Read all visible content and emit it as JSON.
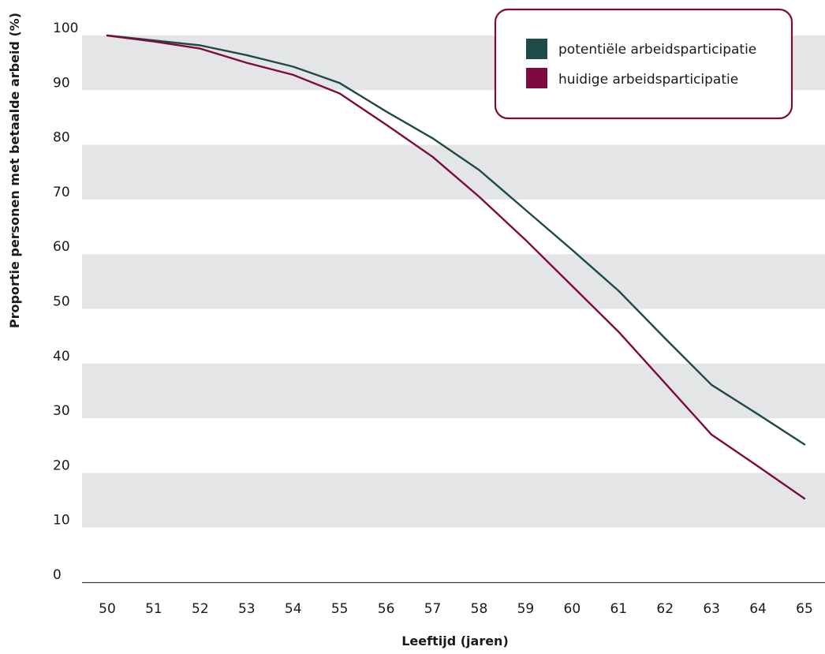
{
  "chart_data": {
    "type": "line",
    "xlabel": "Leeftijd (jaren)",
    "ylabel": "Proportie personen met betaalde arbeid (%)",
    "ylim": [
      0,
      100
    ],
    "yticks": [
      0,
      10,
      20,
      30,
      40,
      50,
      60,
      70,
      80,
      90,
      100
    ],
    "x": [
      50,
      51,
      52,
      53,
      54,
      55,
      56,
      57,
      58,
      59,
      60,
      61,
      62,
      63,
      64,
      65
    ],
    "grid": "alternating horizontal bands",
    "legend_position": "top-right",
    "series": [
      {
        "name": "potentiële arbeidsparticipatie",
        "color": "#1f4a47",
        "values": [
          100,
          99.1,
          98.2,
          96.4,
          94.3,
          91.3,
          86.1,
          81.2,
          75.4,
          68.1,
          60.8,
          53.3,
          44.6,
          36.1,
          30.7,
          25.2
        ]
      },
      {
        "name": "huidige arbeidsparticipatie",
        "color": "#7d0a3f",
        "values": [
          100,
          98.9,
          97.6,
          95.0,
          92.8,
          89.4,
          83.7,
          77.8,
          70.5,
          62.6,
          54.2,
          45.8,
          36.4,
          27.0,
          21.2,
          15.3
        ]
      }
    ],
    "band_color": "#e4e5e7",
    "axis_color": "#3c3c3c",
    "legend_border_color": "#7d0a3f"
  }
}
